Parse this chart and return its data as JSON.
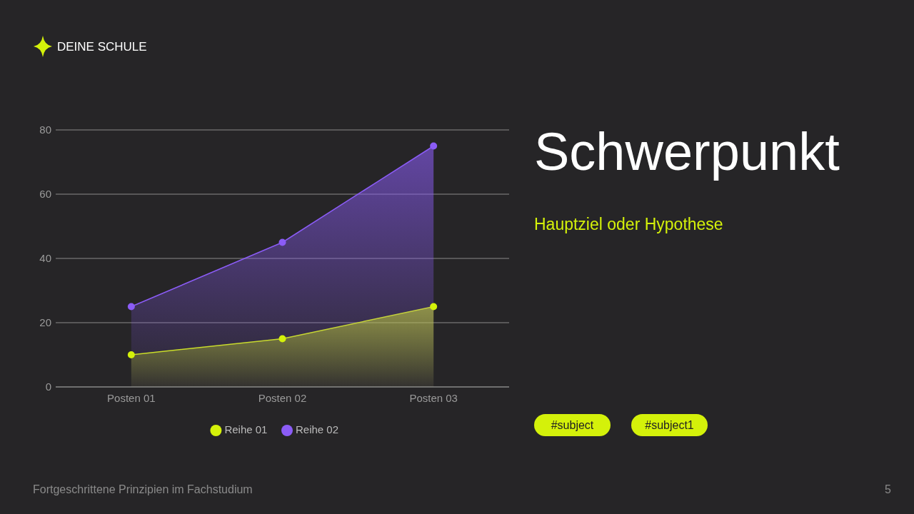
{
  "chart_data": {
    "type": "area",
    "title": "Schwerpunkt",
    "subtitle": "Hauptziel oder Hypothese",
    "categories": [
      "Posten 01",
      "Posten 02",
      "Posten 03"
    ],
    "series": [
      {
        "name": "Reihe 01",
        "color": "#d4f10a",
        "values": [
          10,
          15,
          25
        ]
      },
      {
        "name": "Reihe 02",
        "color": "#8b5cf6",
        "values": [
          25,
          45,
          75
        ]
      }
    ],
    "ylim": [
      0,
      80
    ],
    "yticks": [
      0,
      20,
      40,
      60,
      80
    ],
    "grid": "y",
    "legend": "bottom",
    "marker": "circle",
    "annotations": [
      "DEINE SCHULE",
      "#subject",
      "#subject1",
      "Fortgeschrittene Prinzipien im Fachstudium",
      "5"
    ]
  }
}
